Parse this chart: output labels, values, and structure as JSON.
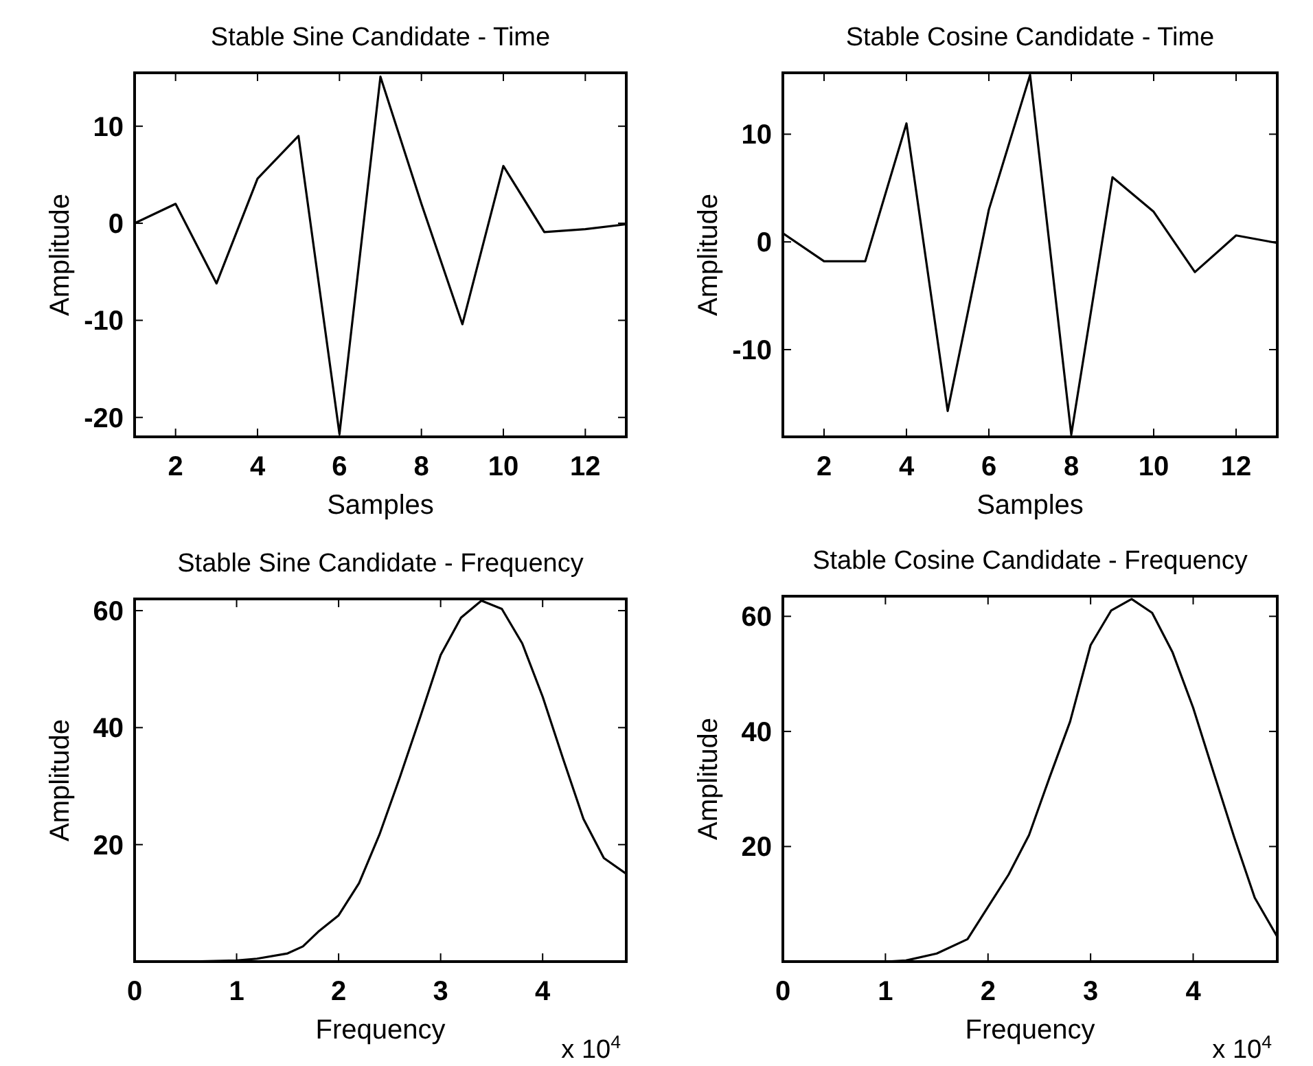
{
  "chart_data": [
    {
      "type": "line",
      "title": "Stable Sine Candidate - Time",
      "xlabel": "Samples",
      "ylabel": "Amplitude",
      "color": "#000000",
      "grid": false,
      "x": [
        1,
        2,
        3,
        4,
        5,
        6,
        7,
        8,
        9,
        10,
        11,
        12,
        13
      ],
      "values": [
        0,
        2,
        -6.2,
        4.6,
        9,
        -21.7,
        15.1,
        2,
        -10.4,
        5.9,
        -0.9,
        -0.6,
        -0.1
      ],
      "xlim": [
        1,
        13
      ],
      "xticks": [
        2,
        4,
        6,
        8,
        10,
        12
      ],
      "ylim": [
        -22,
        15.5
      ],
      "yticks": [
        -20,
        -10,
        0,
        10
      ]
    },
    {
      "type": "line",
      "title": "Stable Cosine Candidate - Time",
      "xlabel": "Samples",
      "ylabel": "Amplitude",
      "color": "#000000",
      "grid": false,
      "x": [
        1,
        2,
        3,
        4,
        5,
        6,
        7,
        8,
        9,
        10,
        11,
        12,
        13
      ],
      "values": [
        0.8,
        -1.8,
        -1.8,
        11,
        -15.7,
        3,
        15.5,
        -17.9,
        6,
        2.8,
        -2.8,
        0.6,
        -0.1
      ],
      "xlim": [
        1,
        13
      ],
      "xticks": [
        2,
        4,
        6,
        8,
        10,
        12
      ],
      "ylim": [
        -18.1,
        15.7
      ],
      "yticks": [
        -10,
        0,
        10
      ]
    },
    {
      "type": "line",
      "title": "Stable Sine Candidate - Frequency",
      "xlabel": "Frequency",
      "ylabel": "Amplitude",
      "color": "#000000",
      "grid": false,
      "annotations": [
        "x 10$^{4}$"
      ],
      "x": [
        0,
        0.5,
        1,
        1.2,
        1.5,
        1.65,
        1.8,
        2,
        2.2,
        2.4,
        2.6,
        2.8,
        3,
        3.2,
        3.4,
        3.6,
        3.8,
        4,
        4.2,
        4.4,
        4.6,
        4.82
      ],
      "values": [
        0,
        0,
        0.2,
        0.5,
        1.4,
        2.6,
        5.1,
        7.9,
        13.4,
        21.7,
        31.5,
        41.8,
        52.4,
        58.8,
        61.7,
        60.3,
        54.4,
        45.3,
        34.7,
        24.4,
        17.7,
        15
      ],
      "xlim": [
        0,
        4.82
      ],
      "xticks": [
        0,
        1,
        2,
        3,
        4
      ],
      "ylim": [
        0,
        62
      ],
      "yticks": [
        20,
        40,
        60
      ]
    },
    {
      "type": "line",
      "title": "Stable Cosine Candidate - Frequency",
      "xlabel": "Frequency",
      "ylabel": "Amplitude",
      "color": "#000000",
      "grid": false,
      "annotations": [
        "x 10$^{4}$"
      ],
      "x": [
        0,
        0.5,
        1,
        1.2,
        1.5,
        1.8,
        2,
        2.2,
        2.4,
        2.6,
        2.8,
        3,
        3.2,
        3.4,
        3.6,
        3.8,
        4,
        4.2,
        4.4,
        4.6,
        4.82
      ],
      "values": [
        0,
        0,
        0,
        0.2,
        1.4,
        3.9,
        9.5,
        15.1,
        22,
        32,
        41.7,
        55,
        61,
        63,
        60.6,
        53.7,
        44.1,
        32.8,
        21.6,
        11.1,
        4.3
      ],
      "xlim": [
        0,
        4.82
      ],
      "xticks": [
        0,
        1,
        2,
        3,
        4
      ],
      "ylim": [
        0,
        63.5
      ],
      "yticks": [
        20,
        40,
        60
      ]
    }
  ]
}
